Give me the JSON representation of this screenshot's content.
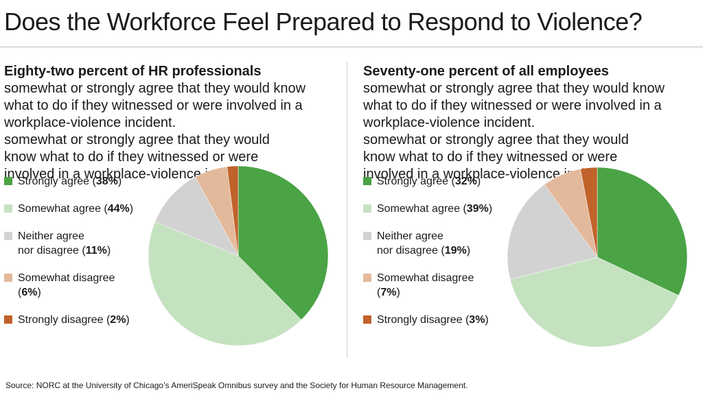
{
  "title": "Does the Workforce Feel Prepared to Respond to Violence?",
  "source": "Source: NORC at the University of Chicago’s AmeriSpeak Omnibus survey and the Society for Human Resource Management.",
  "colors": {
    "strongly_agree": "#4aa345",
    "somewhat_agree": "#c5e2c0",
    "neither": "#d2d2d2",
    "somewhat_disagree": "#e3b99b",
    "strongly_disagree": "#c0632b"
  },
  "chart_data": [
    {
      "type": "pie",
      "subtitle_bold": "Eighty-two percent of HR professionals",
      "subtitle": "somewhat or strongly agree that they would know what to do if they witnessed or were involved in a workplace-violence incident.",
      "subtitle_lines": [
        "somewhat or strongly agree that they would",
        "know what to do if they witnessed or were",
        "involved in a workplace-violence incident."
      ],
      "legend_placement": "left",
      "slices": [
        {
          "label": "Strongly agree",
          "label_lines": [
            "Strongly agree"
          ],
          "value": 38,
          "value_text": "38%",
          "color_key": "strongly_agree"
        },
        {
          "label": "Somewhat agree",
          "label_lines": [
            "Somewhat agree"
          ],
          "value": 44,
          "value_text": "44%",
          "color_key": "somewhat_agree"
        },
        {
          "label": "Neither agree nor disagree",
          "label_lines": [
            "Neither agree",
            "nor disagree"
          ],
          "value": 11,
          "value_text": "11%",
          "color_key": "neither"
        },
        {
          "label": "Somewhat disagree",
          "label_lines": [
            "Somewhat disagree",
            ""
          ],
          "value": 6,
          "value_text": "6%",
          "color_key": "somewhat_disagree"
        },
        {
          "label": "Strongly disagree",
          "label_lines": [
            "Strongly disagree"
          ],
          "value": 2,
          "value_text": "2%",
          "color_key": "strongly_disagree"
        }
      ]
    },
    {
      "type": "pie",
      "subtitle_bold": "Seventy-one percent of all employees",
      "subtitle": "somewhat or strongly agree that they would know what to do if they witnessed or were involved in a workplace-violence incident.",
      "subtitle_lines": [
        "somewhat or strongly agree that they would",
        "know what to do if they witnessed or were",
        "involved in a workplace-violence incident."
      ],
      "legend_placement": "left",
      "slices": [
        {
          "label": "Strongly agree",
          "label_lines": [
            "Strongly agree"
          ],
          "value": 32,
          "value_text": "32%",
          "color_key": "strongly_agree"
        },
        {
          "label": "Somewhat agree",
          "label_lines": [
            "Somewhat agree"
          ],
          "value": 39,
          "value_text": "39%",
          "color_key": "somewhat_agree"
        },
        {
          "label": "Neither agree nor disagree",
          "label_lines": [
            "Neither agree",
            "nor disagree"
          ],
          "value": 19,
          "value_text": "19%",
          "color_key": "neither"
        },
        {
          "label": "Somewhat disagree",
          "label_lines": [
            "Somewhat disagree",
            ""
          ],
          "value": 7,
          "value_text": "7%",
          "color_key": "somewhat_disagree"
        },
        {
          "label": "Strongly disagree",
          "label_lines": [
            "Strongly disagree"
          ],
          "value": 3,
          "value_text": "3%",
          "color_key": "strongly_disagree"
        }
      ]
    }
  ]
}
